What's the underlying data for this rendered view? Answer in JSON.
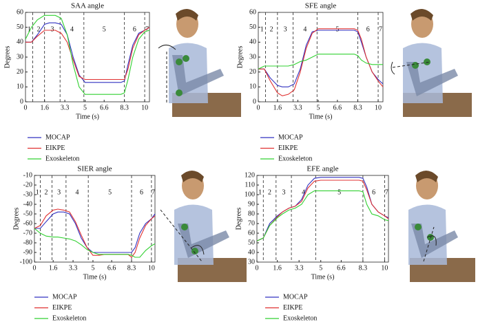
{
  "chart_data": [
    {
      "type": "line",
      "title": "SAA angle",
      "x_label": "Time (s)",
      "y_label": "Degrees",
      "x": [
        0,
        0.5,
        1,
        1.6,
        2,
        2.5,
        3,
        3.5,
        4,
        4.5,
        5,
        5.5,
        6,
        6.6,
        7,
        7.5,
        8,
        8.3,
        8.6,
        9,
        9.5,
        10,
        10.4
      ],
      "xlim": [
        0,
        10.4
      ],
      "xticks": [
        0,
        1.6,
        3.3,
        5,
        6.6,
        8.3,
        10
      ],
      "ylim": [
        0,
        60
      ],
      "yticks": [
        0,
        10,
        20,
        30,
        40,
        50,
        60
      ],
      "phase_lines": [
        0.6,
        1.6,
        2.9,
        4.9,
        8.3,
        10.0
      ],
      "phase_labels": [
        "1",
        "2",
        "3",
        "4",
        "5",
        "6",
        "7"
      ],
      "series": [
        {
          "name": "MOCAP",
          "color": "#3030c0",
          "values": [
            40,
            40,
            45,
            52,
            53,
            53,
            52,
            45,
            30,
            18,
            13,
            13,
            13,
            13,
            13,
            13,
            13,
            14,
            25,
            38,
            46,
            48,
            50
          ]
        },
        {
          "name": "EIKPE",
          "color": "#e03030",
          "values": [
            40,
            40,
            44,
            48,
            48,
            48,
            46,
            40,
            28,
            17,
            15,
            15,
            15,
            15,
            15,
            15,
            15,
            15,
            22,
            36,
            45,
            48,
            50
          ]
        },
        {
          "name": "Exoskeleton",
          "color": "#30d030",
          "values": [
            42,
            50,
            55,
            58,
            58,
            58,
            56,
            45,
            25,
            10,
            5,
            5,
            5,
            5,
            5,
            5,
            5,
            6,
            15,
            30,
            42,
            47,
            48
          ]
        }
      ]
    },
    {
      "type": "line",
      "title": "SFE angle",
      "x_label": "Time (s)",
      "y_label": "Degrees",
      "x": [
        0,
        0.5,
        1,
        1.6,
        2,
        2.5,
        3,
        3.5,
        4,
        4.5,
        5,
        5.5,
        6,
        6.6,
        7,
        7.5,
        8,
        8.3,
        8.6,
        9,
        9.5,
        10,
        10.4
      ],
      "xlim": [
        0,
        10.4
      ],
      "xticks": [
        0,
        1.6,
        3.3,
        5,
        6.6,
        8.3,
        10
      ],
      "ylim": [
        0,
        60
      ],
      "yticks": [
        0,
        10,
        20,
        30,
        40,
        50,
        60
      ],
      "phase_lines": [
        0.6,
        1.6,
        2.9,
        4.9,
        8.3,
        10.0
      ],
      "phase_labels": [
        "1",
        "2",
        "3",
        "4",
        "5",
        "6",
        "7"
      ],
      "series": [
        {
          "name": "MOCAP",
          "color": "#3030c0",
          "values": [
            22,
            22,
            16,
            11,
            10,
            10,
            12,
            22,
            38,
            47,
            48,
            48,
            48,
            48,
            48,
            48,
            48,
            47,
            40,
            30,
            20,
            15,
            12
          ]
        },
        {
          "name": "EIKPE",
          "color": "#e03030",
          "values": [
            22,
            22,
            14,
            6,
            4,
            5,
            8,
            20,
            36,
            46,
            49,
            49,
            49,
            49,
            49,
            49,
            49,
            48,
            42,
            30,
            20,
            14,
            10
          ]
        },
        {
          "name": "Exoskeleton",
          "color": "#30d030",
          "values": [
            22,
            24,
            24,
            24,
            24,
            24,
            25,
            27,
            28,
            30,
            32,
            32,
            32,
            32,
            32,
            32,
            32,
            31,
            28,
            26,
            25,
            25,
            25
          ]
        }
      ]
    },
    {
      "type": "line",
      "title": "SIER angle",
      "x_label": "Time (s)",
      "y_label": "Degrees",
      "x": [
        0,
        0.5,
        1,
        1.6,
        2,
        2.5,
        3,
        3.5,
        4,
        4.5,
        5,
        5.5,
        6,
        6.6,
        7,
        7.5,
        8,
        8.3,
        8.6,
        9,
        9.5,
        10,
        10.3
      ],
      "xlim": [
        0,
        10.3
      ],
      "xticks": [
        0,
        1.6,
        3.3,
        5,
        6.6,
        8.3,
        10
      ],
      "ylim": [
        -100,
        -10
      ],
      "yticks": [
        -100,
        -90,
        -80,
        -70,
        -60,
        -50,
        -40,
        -30,
        -20,
        -10
      ],
      "phase_lines": [
        0.5,
        1.5,
        2.7,
        4.6,
        8.3,
        10.0
      ],
      "phase_labels": [
        "1",
        "2",
        "3",
        "4",
        "5",
        "6",
        "7"
      ],
      "series": [
        {
          "name": "MOCAP",
          "color": "#3030c0",
          "values": [
            -65,
            -65,
            -58,
            -50,
            -48,
            -48,
            -50,
            -60,
            -75,
            -85,
            -90,
            -90,
            -90,
            -90,
            -90,
            -90,
            -90,
            -90,
            -85,
            -70,
            -60,
            -55,
            -50
          ]
        },
        {
          "name": "EIKPE",
          "color": "#e03030",
          "values": [
            -65,
            -62,
            -52,
            -46,
            -45,
            -46,
            -48,
            -58,
            -72,
            -85,
            -93,
            -93,
            -92,
            -92,
            -92,
            -92,
            -92,
            -95,
            -90,
            -75,
            -62,
            -55,
            -52
          ]
        },
        {
          "name": "Exoskeleton",
          "color": "#30d030",
          "values": [
            -65,
            -70,
            -73,
            -74,
            -74,
            -75,
            -76,
            -78,
            -82,
            -87,
            -90,
            -92,
            -92,
            -92,
            -92,
            -92,
            -92,
            -93,
            -95,
            -95,
            -88,
            -83,
            -81
          ]
        }
      ]
    },
    {
      "type": "line",
      "title": "EFE angle",
      "x_label": "Time (s)",
      "y_label": "Degrees",
      "x": [
        0,
        0.5,
        1,
        1.6,
        2,
        2.5,
        3,
        3.5,
        4,
        4.5,
        5,
        5.5,
        6,
        6.6,
        7,
        7.5,
        8,
        8.3,
        8.6,
        9,
        9.5,
        10,
        10.3
      ],
      "xlim": [
        0,
        10.3
      ],
      "xticks": [
        0,
        1.6,
        3.3,
        5,
        6.6,
        8.3,
        10
      ],
      "ylim": [
        30,
        120
      ],
      "yticks": [
        30,
        40,
        50,
        60,
        70,
        80,
        90,
        100,
        110,
        120
      ],
      "phase_lines": [
        0.5,
        1.5,
        2.7,
        4.6,
        8.3,
        10.0
      ],
      "phase_labels": [
        "1",
        "2",
        "3",
        "4",
        "5",
        "6",
        "7"
      ],
      "series": [
        {
          "name": "MOCAP",
          "color": "#3030c0",
          "values": [
            52,
            55,
            70,
            78,
            82,
            86,
            88,
            95,
            110,
            117,
            118,
            118,
            118,
            118,
            118,
            118,
            118,
            117,
            108,
            90,
            82,
            78,
            76
          ]
        },
        {
          "name": "EIKPE",
          "color": "#e03030",
          "values": [
            52,
            55,
            68,
            77,
            82,
            86,
            88,
            93,
            107,
            114,
            115,
            115,
            115,
            115,
            115,
            115,
            115,
            114,
            105,
            90,
            82,
            78,
            75
          ]
        },
        {
          "name": "Exoskeleton",
          "color": "#30d030",
          "values": [
            52,
            55,
            68,
            76,
            80,
            84,
            86,
            90,
            100,
            104,
            104,
            104,
            104,
            104,
            104,
            104,
            104,
            103,
            90,
            80,
            78,
            74,
            73
          ]
        }
      ]
    }
  ]
}
